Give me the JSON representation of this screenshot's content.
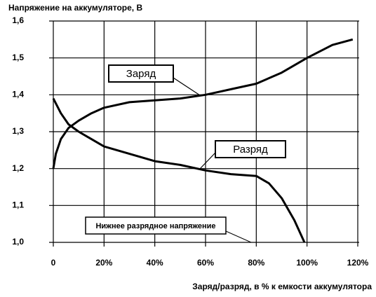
{
  "chart_data": {
    "type": "line",
    "y_label": "Напряжение на аккумуляторе, В",
    "x_label": "Заряд/разряд, в % к емкости аккумулятора",
    "xlim": [
      0,
      120
    ],
    "xticks": [
      0,
      {
        "value": 20,
        "label": "20%"
      },
      {
        "value": 40,
        "label": "40%"
      },
      {
        "value": 60,
        "label": "60%"
      },
      {
        "value": 80,
        "label": "80%"
      },
      {
        "value": 100,
        "label": "100%"
      },
      {
        "value": 120,
        "label": "120%"
      }
    ],
    "ylim": [
      1.0,
      1.6
    ],
    "yticks": [
      {
        "value": 1.0,
        "label": "1,0"
      },
      {
        "value": 1.1,
        "label": "1,1"
      },
      {
        "value": 1.2,
        "label": "1,2"
      },
      {
        "value": 1.3,
        "label": "1,3"
      },
      {
        "value": 1.4,
        "label": "1,4"
      },
      {
        "value": 1.5,
        "label": "1,5"
      },
      {
        "value": 1.6,
        "label": "1,6"
      }
    ],
    "grid": true,
    "series": [
      {
        "name": "Заряд",
        "color": "#000000",
        "x": [
          0,
          1,
          3,
          6,
          10,
          15,
          20,
          30,
          40,
          50,
          60,
          70,
          80,
          90,
          100,
          110,
          118
        ],
        "values": [
          1.2,
          1.24,
          1.28,
          1.31,
          1.33,
          1.35,
          1.365,
          1.38,
          1.385,
          1.39,
          1.4,
          1.415,
          1.43,
          1.46,
          1.5,
          1.535,
          1.55
        ]
      },
      {
        "name": "Разряд",
        "color": "#000000",
        "x": [
          0,
          3,
          6,
          10,
          20,
          30,
          40,
          50,
          60,
          70,
          80,
          85,
          90,
          95,
          99
        ],
        "values": [
          1.39,
          1.35,
          1.32,
          1.3,
          1.26,
          1.24,
          1.22,
          1.21,
          1.195,
          1.185,
          1.18,
          1.16,
          1.12,
          1.06,
          1.0
        ]
      }
    ],
    "annotations": [
      "Нижнее разрядное напряжение"
    ]
  }
}
